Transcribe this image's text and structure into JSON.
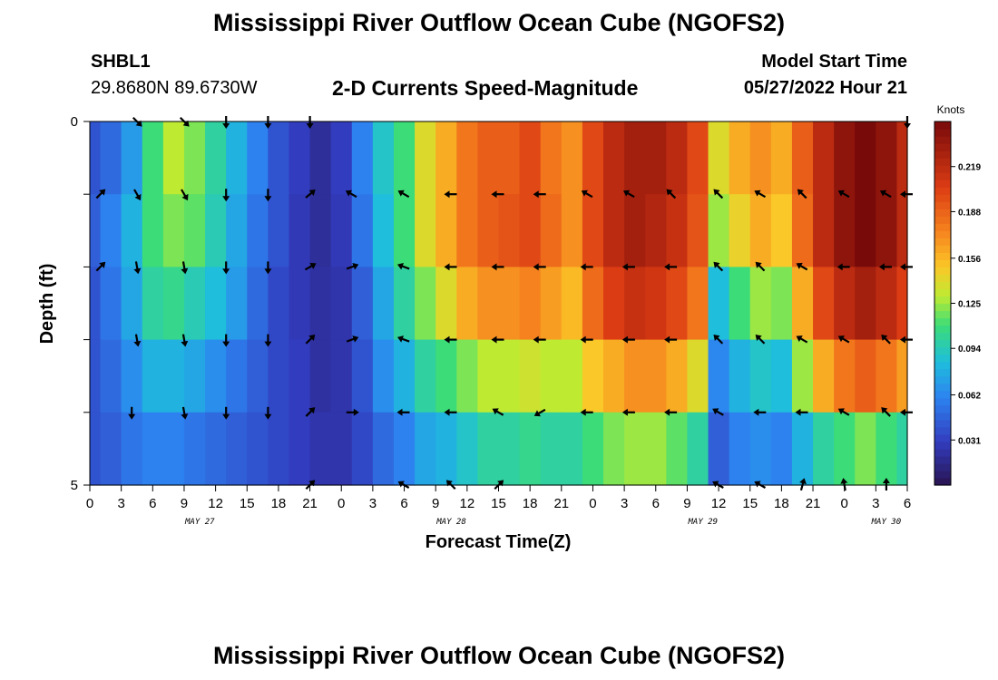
{
  "header": {
    "title": "Mississippi River Outflow Ocean Cube (NGOFS2)",
    "station": "SHBL1",
    "coords": "29.8680N  89.6730W",
    "subtitle": "2-D Currents Speed-Magnitude",
    "model_start_label": "Model Start Time",
    "model_start_value": "05/27/2022 Hour 21"
  },
  "footer": {
    "title": "Mississippi River Outflow Ocean Cube (NGOFS2)"
  },
  "chart_data": {
    "type": "heatmap",
    "title": "2-D Currents Speed-Magnitude",
    "xlabel": "Forecast Time(Z)",
    "ylabel": "Depth (ft)",
    "x_tick_labels": [
      "0",
      "3",
      "6",
      "9",
      "12",
      "15",
      "18",
      "21",
      "0",
      "3",
      "6",
      "9",
      "12",
      "15",
      "18",
      "21",
      "0",
      "3",
      "6",
      "9",
      "12",
      "15",
      "18",
      "21",
      "0",
      "3",
      "6"
    ],
    "x_hours": [
      0,
      3,
      6,
      9,
      12,
      15,
      18,
      21,
      24,
      27,
      30,
      33,
      36,
      39,
      42,
      45,
      48,
      51,
      54,
      57,
      60,
      63,
      66,
      69,
      72,
      75,
      78
    ],
    "date_labels": [
      {
        "label": "MAY 27",
        "hour": 10.5
      },
      {
        "label": "MAY 28",
        "hour": 34.5
      },
      {
        "label": "MAY 29",
        "hour": 58.5
      },
      {
        "label": "MAY 30",
        "hour": 76
      }
    ],
    "y_tick_labels": [
      "0",
      "5"
    ],
    "ylim": [
      0,
      5
    ],
    "xlim": [
      0,
      78
    ],
    "colorbar": {
      "unit": "Knots",
      "ticks": [
        "0.031",
        "0.062",
        "0.094",
        "0.125",
        "0.156",
        "0.188",
        "0.219"
      ],
      "tick_values": [
        0.031,
        0.062,
        0.094,
        0.125,
        0.156,
        0.188,
        0.219
      ],
      "range": [
        0,
        0.25
      ]
    },
    "depth_layers": [
      0,
      1,
      2,
      3,
      4,
      5
    ],
    "time_hours": [
      0,
      2,
      4,
      6,
      8,
      10,
      12,
      14,
      16,
      18,
      20,
      22,
      24,
      26,
      28,
      30,
      32,
      34,
      36,
      38,
      40,
      42,
      44,
      46,
      48,
      50,
      52,
      54,
      56,
      58,
      60,
      62,
      64,
      66,
      68,
      70,
      72,
      74,
      76,
      78
    ],
    "speed_knots": [
      [
        0.04,
        0.05,
        0.07,
        0.11,
        0.13,
        0.12,
        0.1,
        0.08,
        0.06,
        0.04,
        0.03,
        0.02,
        0.03,
        0.06,
        0.09,
        0.11,
        0.14,
        0.16,
        0.18,
        0.19,
        0.19,
        0.2,
        0.18,
        0.17,
        0.2,
        0.22,
        0.23,
        0.23,
        0.22,
        0.2,
        0.14,
        0.16,
        0.17,
        0.16,
        0.19,
        0.22,
        0.24,
        0.25,
        0.24,
        0.22
      ],
      [
        0.045,
        0.06,
        0.08,
        0.11,
        0.12,
        0.115,
        0.095,
        0.075,
        0.055,
        0.04,
        0.028,
        0.02,
        0.028,
        0.055,
        0.085,
        0.11,
        0.14,
        0.16,
        0.18,
        0.19,
        0.195,
        0.2,
        0.185,
        0.17,
        0.2,
        0.22,
        0.23,
        0.225,
        0.215,
        0.195,
        0.125,
        0.145,
        0.16,
        0.15,
        0.185,
        0.22,
        0.24,
        0.25,
        0.24,
        0.22
      ],
      [
        0.04,
        0.055,
        0.075,
        0.1,
        0.105,
        0.095,
        0.085,
        0.07,
        0.05,
        0.035,
        0.028,
        0.022,
        0.025,
        0.045,
        0.075,
        0.1,
        0.12,
        0.14,
        0.16,
        0.17,
        0.17,
        0.175,
        0.165,
        0.155,
        0.185,
        0.205,
        0.215,
        0.21,
        0.2,
        0.18,
        0.085,
        0.11,
        0.125,
        0.12,
        0.16,
        0.2,
        0.22,
        0.23,
        0.22,
        0.205
      ],
      [
        0.04,
        0.05,
        0.065,
        0.08,
        0.08,
        0.075,
        0.065,
        0.055,
        0.045,
        0.035,
        0.03,
        0.022,
        0.025,
        0.04,
        0.065,
        0.08,
        0.1,
        0.11,
        0.12,
        0.13,
        0.13,
        0.135,
        0.13,
        0.13,
        0.15,
        0.16,
        0.17,
        0.17,
        0.16,
        0.14,
        0.062,
        0.08,
        0.09,
        0.085,
        0.125,
        0.16,
        0.18,
        0.19,
        0.18,
        0.165
      ],
      [
        0.04,
        0.045,
        0.055,
        0.06,
        0.06,
        0.055,
        0.05,
        0.045,
        0.04,
        0.035,
        0.03,
        0.025,
        0.025,
        0.035,
        0.05,
        0.06,
        0.075,
        0.08,
        0.09,
        0.1,
        0.1,
        0.105,
        0.1,
        0.1,
        0.11,
        0.12,
        0.125,
        0.125,
        0.115,
        0.1,
        0.045,
        0.06,
        0.065,
        0.06,
        0.08,
        0.1,
        0.11,
        0.12,
        0.11,
        0.1
      ]
    ],
    "arrows": [
      {
        "row": 0,
        "hours": [
          1,
          4.5,
          9,
          13,
          17,
          21,
          24.5,
          30,
          34.5,
          39,
          43,
          46.5,
          51,
          55,
          59,
          63,
          67.5,
          71,
          75.5,
          79
        ],
        "degrees": [
          null,
          135,
          135,
          180,
          180,
          180,
          null,
          null,
          null,
          null,
          null,
          null,
          null,
          null,
          null,
          null,
          null,
          null,
          null,
          180
        ]
      },
      {
        "row": 1,
        "hours": [
          1,
          4.5,
          9,
          13,
          17,
          21,
          25,
          30,
          34.5,
          39,
          43,
          47.5,
          51.5,
          55.5,
          60,
          64,
          68,
          72,
          76,
          79
        ],
        "degrees": [
          45,
          150,
          150,
          180,
          180,
          50,
          300,
          300,
          270,
          270,
          270,
          300,
          300,
          315,
          315,
          300,
          315,
          300,
          300,
          270
        ]
      },
      {
        "row": 2,
        "hours": [
          1,
          4.5,
          9,
          13,
          17,
          21,
          25,
          30,
          34.5,
          39,
          43,
          47.5,
          51.5,
          55.5,
          60,
          64,
          68,
          72,
          76,
          79
        ],
        "degrees": [
          45,
          170,
          170,
          180,
          180,
          60,
          70,
          290,
          270,
          270,
          270,
          270,
          270,
          270,
          315,
          315,
          300,
          270,
          270,
          270
        ]
      },
      {
        "row": 3,
        "hours": [
          4.5,
          9,
          13,
          17,
          21,
          25,
          30,
          34.5,
          39,
          43,
          47.5,
          51.5,
          55.5,
          60,
          64,
          68,
          72,
          76,
          79
        ],
        "degrees": [
          170,
          170,
          180,
          180,
          45,
          70,
          290,
          270,
          270,
          270,
          270,
          270,
          270,
          315,
          315,
          300,
          300,
          315,
          270
        ]
      },
      {
        "row": 4,
        "hours": [
          4,
          9,
          13,
          17,
          21,
          25,
          30,
          34.5,
          39,
          43,
          47.5,
          51.5,
          55.5,
          60,
          64,
          68,
          72,
          76,
          79
        ],
        "degrees": [
          180,
          170,
          180,
          180,
          45,
          90,
          270,
          270,
          300,
          240,
          270,
          270,
          270,
          300,
          270,
          270,
          300,
          315,
          270
        ]
      },
      {
        "row": 5,
        "hours": [
          21,
          30,
          34.5,
          39,
          60,
          64,
          68,
          72,
          76
        ],
        "degrees": [
          45,
          300,
          315,
          45,
          300,
          300,
          15,
          350,
          0
        ]
      }
    ]
  }
}
